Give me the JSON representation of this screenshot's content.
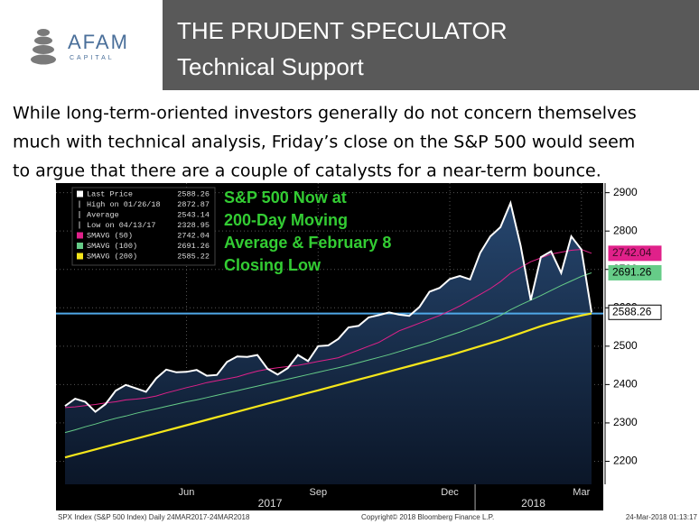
{
  "header": {
    "logo": {
      "name": "AFAM",
      "sub": "CAPITAL"
    },
    "title": "THE PRUDENT SPECULATOR",
    "subtitle": "Technical Support"
  },
  "body_lines": [
    "While long-term-oriented investors generally do not concern themselves",
    "much with technical analysis, Friday’s close on the S&P 500 would seem",
    "to argue that there are a couple of catalysts for a near-term bounce."
  ],
  "chart_data": {
    "type": "line",
    "annotation": [
      "S&P 500 Now at",
      "200-Day Moving",
      "Average & February 8",
      "Closing Low"
    ],
    "categories": [
      null,
      null,
      null,
      null,
      null,
      null,
      null,
      null,
      null,
      null,
      null,
      null,
      "Jun",
      null,
      null,
      null,
      null,
      null,
      null,
      null,
      null,
      null,
      null,
      null,
      null,
      "Sep",
      null,
      null,
      null,
      null,
      null,
      null,
      null,
      null,
      null,
      null,
      null,
      null,
      "Dec",
      null,
      null,
      null,
      null,
      null,
      null,
      null,
      null,
      null,
      null,
      null,
      null,
      "Mar",
      null
    ],
    "x_group_labels": [
      "2017",
      "2018"
    ],
    "series": [
      {
        "name": "Last Price",
        "color": "#ffffff",
        "values": [
          2344,
          2363,
          2355,
          2329,
          2349,
          2384,
          2399,
          2390,
          2381,
          2416,
          2439,
          2432,
          2433,
          2438,
          2423,
          2425,
          2459,
          2473,
          2472,
          2477,
          2441,
          2426,
          2443,
          2477,
          2461,
          2500,
          2502,
          2519,
          2549,
          2553,
          2575,
          2581,
          2588,
          2582,
          2579,
          2602,
          2642,
          2652,
          2675,
          2683,
          2674,
          2743,
          2786,
          2810,
          2873,
          2762,
          2620,
          2732,
          2747,
          2691,
          2786,
          2752,
          2588.26
        ]
      },
      {
        "name": "SMAVG (50)",
        "color": "#e0218a",
        "values": [
          2340,
          2342,
          2345,
          2348,
          2352,
          2355,
          2360,
          2362,
          2365,
          2370,
          2378,
          2385,
          2392,
          2398,
          2405,
          2410,
          2415,
          2420,
          2428,
          2435,
          2440,
          2444,
          2447,
          2450,
          2455,
          2460,
          2465,
          2470,
          2480,
          2490,
          2500,
          2510,
          2525,
          2540,
          2550,
          2560,
          2570,
          2580,
          2592,
          2605,
          2620,
          2635,
          2650,
          2668,
          2690,
          2705,
          2720,
          2730,
          2740,
          2745,
          2750,
          2752,
          2742.04
        ]
      },
      {
        "name": "SMAVG (100)",
        "color": "#66cc88",
        "values": [
          2275,
          2282,
          2290,
          2297,
          2305,
          2312,
          2318,
          2325,
          2331,
          2337,
          2343,
          2349,
          2355,
          2360,
          2366,
          2372,
          2378,
          2384,
          2390,
          2396,
          2402,
          2408,
          2414,
          2420,
          2426,
          2432,
          2438,
          2444,
          2450,
          2457,
          2464,
          2471,
          2478,
          2486,
          2494,
          2502,
          2510,
          2519,
          2528,
          2537,
          2547,
          2557,
          2568,
          2580,
          2595,
          2608,
          2620,
          2632,
          2645,
          2658,
          2670,
          2682,
          2691.26
        ]
      },
      {
        "name": "SMAVG (200)",
        "color": "#f5e61b",
        "values": [
          2210,
          2217,
          2224,
          2231,
          2238,
          2245,
          2252,
          2259,
          2266,
          2273,
          2280,
          2287,
          2294,
          2301,
          2308,
          2315,
          2322,
          2329,
          2336,
          2343,
          2350,
          2357,
          2364,
          2371,
          2378,
          2385,
          2392,
          2399,
          2406,
          2413,
          2420,
          2427,
          2434,
          2441,
          2448,
          2455,
          2462,
          2469,
          2476,
          2484,
          2492,
          2500,
          2508,
          2516,
          2525,
          2534,
          2543,
          2552,
          2560,
          2567,
          2574,
          2580,
          2585.22
        ]
      }
    ],
    "legend_stats": [
      {
        "label": "High on 01/26/18",
        "value": 2872.87
      },
      {
        "label": "Average",
        "value": 2543.14
      },
      {
        "label": "Low on 04/13/17",
        "value": 2328.95
      }
    ],
    "ylim": [
      2140,
      2925
    ],
    "yticks": [
      2200,
      2300,
      2400,
      2500,
      2600,
      2700,
      2800,
      2900
    ],
    "grid": true,
    "footer": [
      "SPX Index (S&P 500 Index)  Daily 24MAR2017-24MAR2018",
      "Copyright© 2018 Bloomberg Finance L.P.",
      "24-Mar-2018 01:13:17"
    ]
  }
}
